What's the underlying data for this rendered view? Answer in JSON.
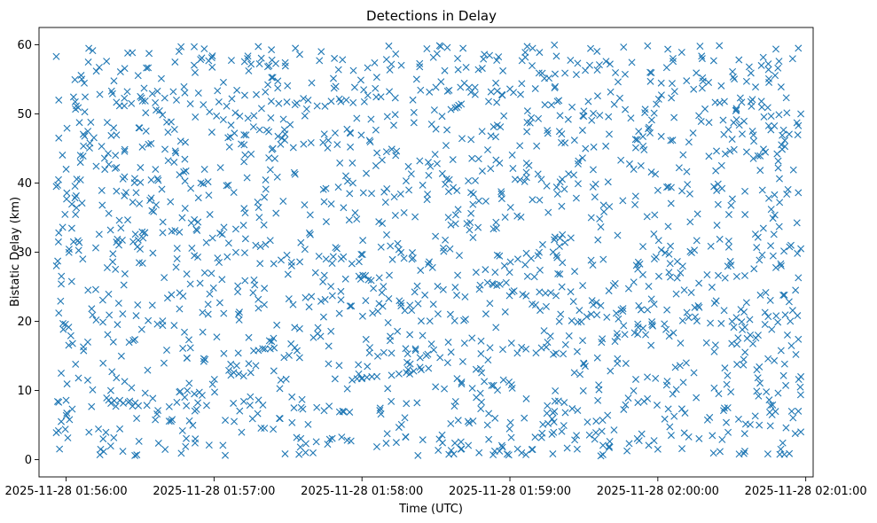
{
  "chart_data": {
    "type": "scatter",
    "title": "Detections in Delay",
    "xlabel": "Time (UTC)",
    "ylabel": "Bistatic Delay (km)",
    "marker": "x",
    "color": "#1f77b4",
    "grid": false,
    "xlim": [
      "2025-11-28 01:55:49",
      "2025-11-28 02:01:03"
    ],
    "ylim": [
      -2.5,
      62.5
    ],
    "x_ticks": [
      "2025-11-28 01:56:00",
      "2025-11-28 01:57:00",
      "2025-11-28 01:58:00",
      "2025-11-28 01:59:00",
      "2025-11-28 02:00:00",
      "2025-11-28 02:01:00"
    ],
    "y_ticks": [
      0,
      10,
      20,
      30,
      40,
      50,
      60
    ],
    "point_count": 1800,
    "points": [
      [
        "01:55:56",
        58.3
      ],
      [
        "01:55:57",
        52.0
      ],
      [
        "01:55:57",
        46.5
      ],
      [
        "01:55:56",
        39.5
      ],
      [
        "01:55:57",
        32.8
      ],
      [
        "01:55:58",
        25.4
      ],
      [
        "01:55:57",
        21.2
      ],
      [
        "01:55:58",
        12.5
      ],
      [
        "01:55:57",
        8.3
      ],
      [
        "01:55:56",
        3.9
      ],
      [
        "01:55:58",
        5.5
      ],
      [
        "01:56:00",
        42.0
      ],
      [
        "01:56:03",
        31.5
      ],
      [
        "01:56:05",
        11.8
      ],
      [
        "01:56:07",
        16.3
      ],
      [
        "01:56:09",
        57.5
      ],
      [
        "01:56:10",
        48.8
      ],
      [
        "01:56:12",
        24.6
      ],
      [
        "01:56:15",
        3.0
      ],
      [
        "01:56:18",
        33.2
      ],
      [
        "01:56:20",
        44.0
      ],
      [
        "01:56:23",
        1.2
      ],
      [
        "01:56:25",
        58.8
      ],
      [
        "01:56:28",
        8.2
      ],
      [
        "01:56:31",
        28.4
      ],
      [
        "01:56:34",
        37.5
      ],
      [
        "01:56:37",
        19.6
      ],
      [
        "01:56:40",
        52.3
      ],
      [
        "01:56:43",
        5.8
      ],
      [
        "01:56:46",
        41.2
      ],
      [
        "01:56:49",
        14.7
      ],
      [
        "01:56:52",
        29.5
      ],
      [
        "01:56:55",
        58.1
      ],
      [
        "01:56:58",
        2.1
      ],
      [
        "01:57:01",
        49.7
      ],
      [
        "01:57:04",
        33.6
      ],
      [
        "01:57:06",
        12.9
      ],
      [
        "01:57:08",
        12.6
      ],
      [
        "01:57:10",
        12.4
      ],
      [
        "01:57:12",
        12.1
      ],
      [
        "01:57:15",
        57.2
      ],
      [
        "01:57:18",
        21.9
      ],
      [
        "01:57:21",
        39.1
      ],
      [
        "01:57:24",
        4.4
      ],
      [
        "01:57:27",
        45.6
      ],
      [
        "01:57:30",
        26.8
      ],
      [
        "01:57:33",
        59.5
      ],
      [
        "01:57:36",
        7.3
      ],
      [
        "01:57:39",
        35.4
      ],
      [
        "01:57:42",
        18.2
      ],
      [
        "01:57:45",
        51.1
      ],
      [
        "01:57:48",
        23.7
      ],
      [
        "01:57:51",
        42.9
      ],
      [
        "01:57:54",
        2.8
      ],
      [
        "01:57:56",
        11.5
      ],
      [
        "01:57:58",
        11.7
      ],
      [
        "01:58:00",
        11.8
      ],
      [
        "01:58:02",
        11.9
      ],
      [
        "01:58:04",
        12.0
      ],
      [
        "01:58:06",
        55.3
      ],
      [
        "01:58:09",
        38.7
      ],
      [
        "01:58:12",
        12.2
      ],
      [
        "01:58:15",
        12.4
      ],
      [
        "01:58:18",
        12.6
      ],
      [
        "01:58:21",
        12.8
      ],
      [
        "01:58:24",
        13.0
      ],
      [
        "01:58:27",
        13.2
      ],
      [
        "01:58:30",
        47.8
      ],
      [
        "01:58:33",
        30.6
      ],
      [
        "01:58:36",
        5.2
      ],
      [
        "01:58:39",
        56.4
      ],
      [
        "01:58:42",
        20.3
      ],
      [
        "01:58:45",
        36.9
      ],
      [
        "01:58:48",
        9.6
      ],
      [
        "01:58:51",
        44.8
      ],
      [
        "01:58:54",
        27.1
      ],
      [
        "01:58:57",
        1.8
      ],
      [
        "01:59:00",
        53.6
      ],
      [
        "01:59:03",
        15.4
      ],
      [
        "01:59:06",
        40.2
      ],
      [
        "01:59:09",
        22.5
      ],
      [
        "01:59:12",
        58.9
      ],
      [
        "01:59:15",
        6.7
      ],
      [
        "01:59:18",
        31.8
      ],
      [
        "01:59:21",
        47.1
      ],
      [
        "01:59:24",
        17.9
      ],
      [
        "01:59:27",
        3.5
      ],
      [
        "01:59:30",
        50.4
      ],
      [
        "01:59:33",
        35.0
      ],
      [
        "01:59:36",
        10.8
      ],
      [
        "01:59:39",
        57.6
      ],
      [
        "01:59:42",
        25.2
      ],
      [
        "01:59:45",
        43.3
      ],
      [
        "01:59:48",
        8.9
      ],
      [
        "01:59:51",
        38.1
      ],
      [
        "01:59:54",
        19.0
      ],
      [
        "01:59:57",
        54.7
      ],
      [
        "02:00:00",
        1.5
      ],
      [
        "02:00:03",
        29.9
      ],
      [
        "02:00:06",
        46.2
      ],
      [
        "02:00:09",
        13.6
      ],
      [
        "02:00:12",
        39.8
      ],
      [
        "02:00:15",
        22.0
      ],
      [
        "02:00:18",
        58.0
      ],
      [
        "02:00:21",
        6.1
      ],
      [
        "02:00:24",
        33.9
      ],
      [
        "02:00:27",
        51.8
      ],
      [
        "02:00:30",
        16.8
      ],
      [
        "02:00:33",
        0.8
      ],
      [
        "02:00:36",
        44.5
      ],
      [
        "02:00:39",
        27.6
      ],
      [
        "02:00:42",
        57.0
      ],
      [
        "02:00:44",
        9.8
      ],
      [
        "02:00:46",
        36.2
      ],
      [
        "02:00:48",
        20.8
      ],
      [
        "02:00:50",
        53.9
      ],
      [
        "02:00:52",
        4.6
      ],
      [
        "02:00:54",
        31.0
      ],
      [
        "02:00:55",
        41.9
      ],
      [
        "02:00:56",
        15.2
      ],
      [
        "02:00:57",
        59.5
      ],
      [
        "02:00:57",
        48.3
      ],
      [
        "02:00:57",
        38.6
      ],
      [
        "02:00:57",
        26.3
      ],
      [
        "02:00:57",
        17.4
      ],
      [
        "02:00:57",
        7.0
      ],
      [
        "02:00:58",
        4.0
      ],
      [
        "02:00:58",
        50.0
      ],
      [
        "02:00:58",
        30.5
      ],
      [
        "02:00:58",
        12.0
      ]
    ]
  }
}
